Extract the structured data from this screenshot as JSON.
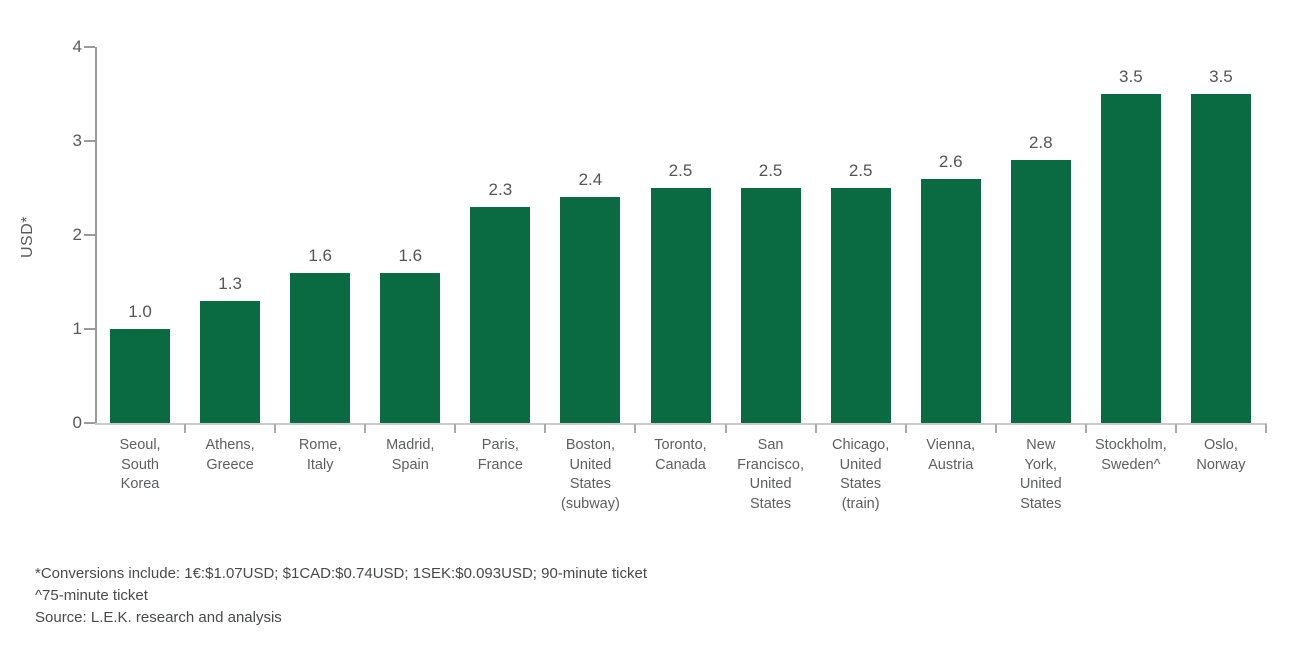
{
  "chart_data": {
    "type": "bar",
    "title": "",
    "xlabel": "",
    "ylabel": "USD*",
    "ylim": [
      0,
      4
    ],
    "yticks": [
      "0",
      "1",
      "2",
      "3",
      "4"
    ],
    "grid": false,
    "legend": null,
    "bar_color": "#0a6b43",
    "categories": [
      "Seoul,\nSouth\nKorea",
      "Athens,\nGreece",
      "Rome,\nItaly",
      "Madrid,\nSpain",
      "Paris,\nFrance",
      "Boston,\nUnited\nStates\n(subway)",
      "Toronto,\nCanada",
      "San\nFrancisco,\nUnited\nStates",
      "Chicago,\nUnited\nStates\n(train)",
      "Vienna,\nAustria",
      "New\nYork,\nUnited\nStates",
      "Stockholm,\nSweden^",
      "Oslo,\nNorway"
    ],
    "values": [
      1.0,
      1.3,
      1.6,
      1.6,
      2.3,
      2.4,
      2.5,
      2.5,
      2.5,
      2.6,
      2.8,
      3.5,
      3.5
    ],
    "value_labels": [
      "1.0",
      "1.3",
      "1.6",
      "1.6",
      "2.3",
      "2.4",
      "2.5",
      "2.5",
      "2.5",
      "2.6",
      "2.8",
      "3.5",
      "3.5"
    ]
  },
  "footnotes": [
    "*Conversions include: 1€:$1.07USD; $1CAD:$0.74USD; 1SEK:$0.093USD; 90-minute ticket",
    "^75-minute ticket",
    "Source: L.E.K. research and analysis"
  ]
}
